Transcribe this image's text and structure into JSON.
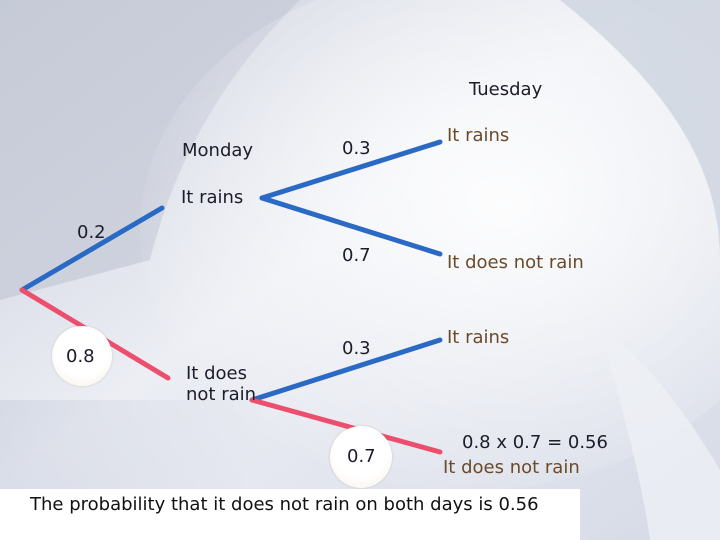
{
  "headers": {
    "tuesday": "Tuesday",
    "monday": "Monday"
  },
  "first_branch": {
    "p_rain": "0.2",
    "p_no_rain": "0.8",
    "rain_label": "It rains",
    "no_rain_label": "It does not rain"
  },
  "second_branch_after_rain": {
    "p_rain": "0.3",
    "p_no_rain": "0.7",
    "rain_label": "It rains",
    "no_rain_label": "It does not rain"
  },
  "second_branch_after_no_rain": {
    "p_rain": "0.3",
    "p_no_rain": "0.7",
    "rain_label": "It rains",
    "calculation": "0.8 x 0.7 = 0.56",
    "no_rain_label": "It does not rain"
  },
  "conclusion": "The probability that it does not rain on both days is 0.56",
  "colors": {
    "branch": "#2b6ac4",
    "highlight_branch": "#ec4f6e",
    "label_text": "#6b4a2a"
  }
}
